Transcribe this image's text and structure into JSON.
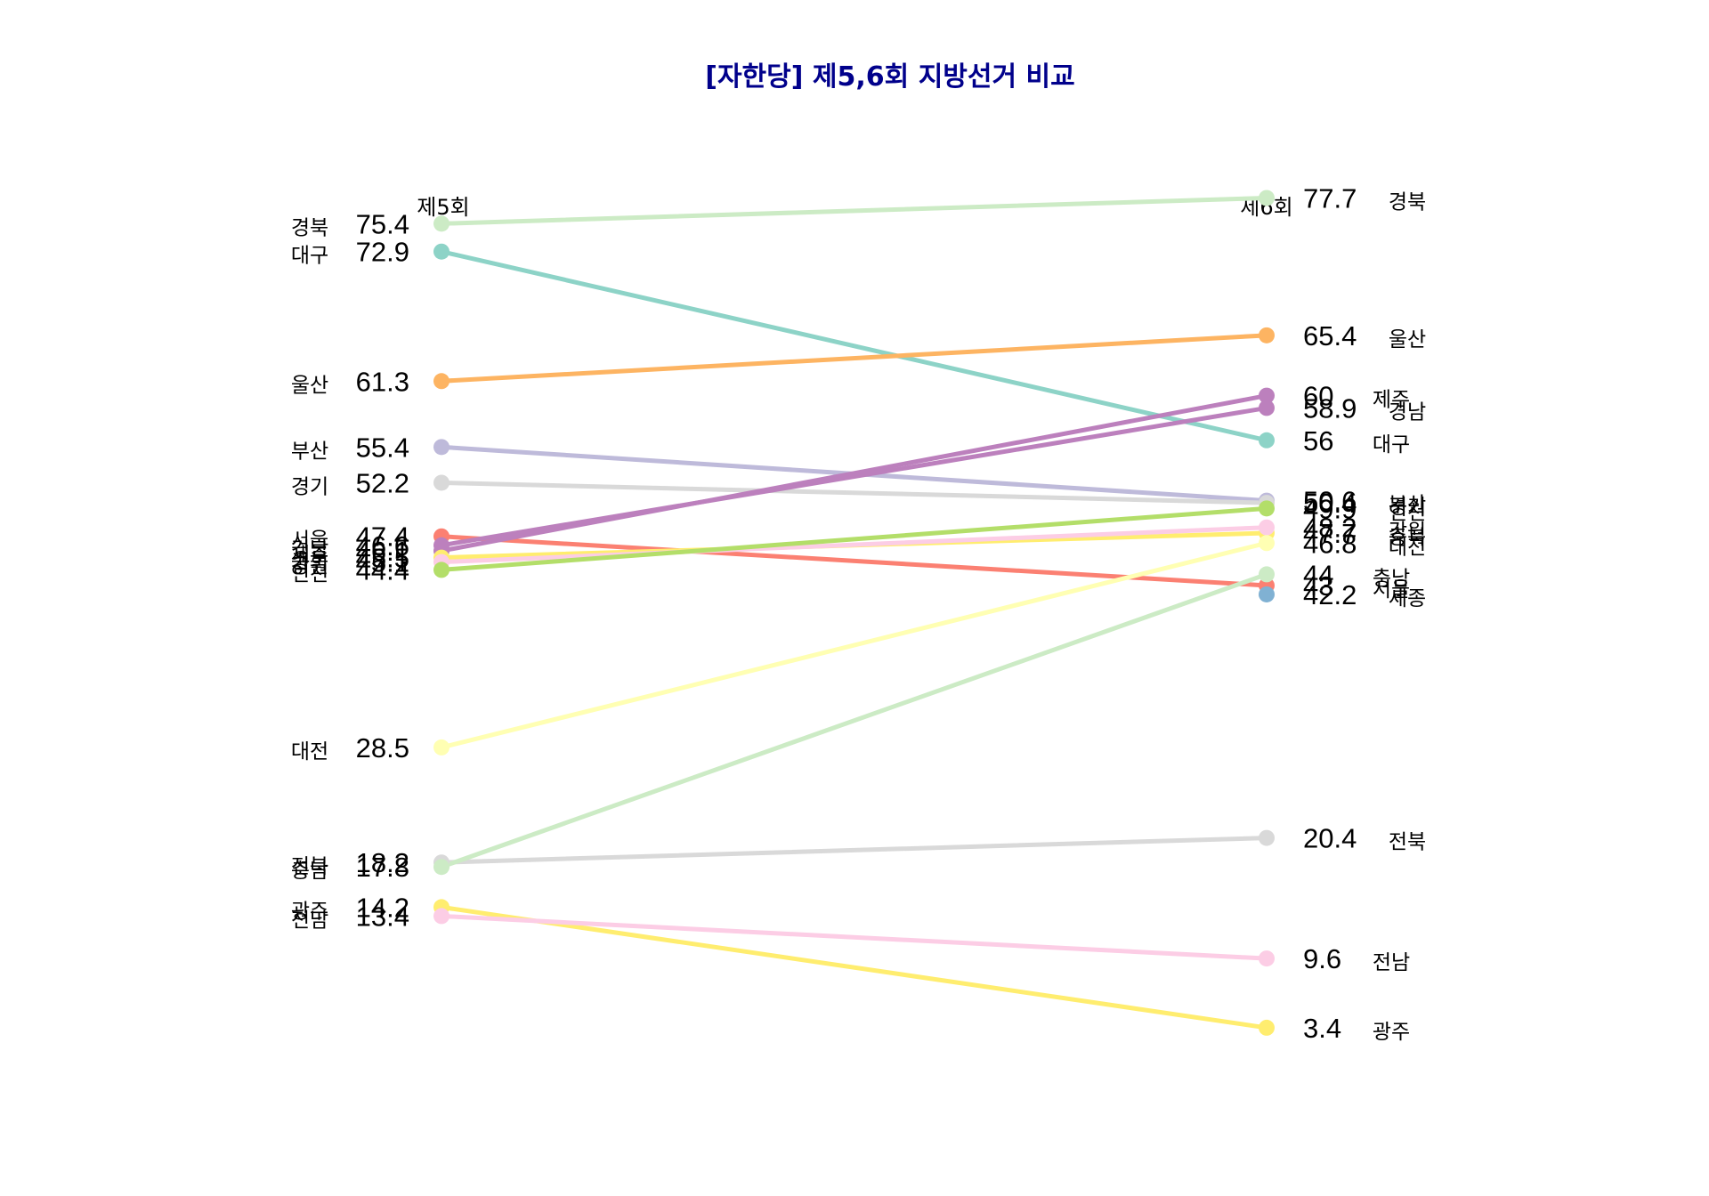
{
  "chart_data": {
    "type": "slope",
    "title": "[자한당] 제5,6회 지방선거 비교",
    "columns": [
      "제5회",
      "제6회"
    ],
    "ylim": [
      0,
      100
    ],
    "series": [
      {
        "name": "경북",
        "values": [
          75.4,
          77.7
        ],
        "color": "#CCEBC5"
      },
      {
        "name": "대구",
        "values": [
          72.9,
          56
        ],
        "color": "#8DD3C7"
      },
      {
        "name": "울산",
        "values": [
          61.3,
          65.4
        ],
        "color": "#FDB462"
      },
      {
        "name": "부산",
        "values": [
          55.4,
          50.6
        ],
        "color": "#BEBADA"
      },
      {
        "name": "경기",
        "values": [
          52.2,
          50.4
        ],
        "color": "#D9D9D9"
      },
      {
        "name": "서울",
        "values": [
          47.4,
          43
        ],
        "color": "#FB8072"
      },
      {
        "name": "경남",
        "values": [
          46.6,
          58.9
        ],
        "color": "#BC80BD"
      },
      {
        "name": "제주",
        "values": [
          46.1,
          60
        ],
        "color": "#BC80BD"
      },
      {
        "name": "충북",
        "values": [
          45.5,
          47.7
        ],
        "color": "#FFED6F"
      },
      {
        "name": "강원",
        "values": [
          45.1,
          48.2
        ],
        "color": "#FCCDE5"
      },
      {
        "name": "인천",
        "values": [
          44.4,
          49.9
        ],
        "color": "#B3DE69"
      },
      {
        "name": "대전",
        "values": [
          28.5,
          46.8
        ],
        "color": "#FFFFB3"
      },
      {
        "name": "전북",
        "values": [
          18.2,
          20.4
        ],
        "color": "#D9D9D9"
      },
      {
        "name": "충남",
        "values": [
          17.8,
          44
        ],
        "color": "#CCEBC5"
      },
      {
        "name": "광주",
        "values": [
          14.2,
          3.4
        ],
        "color": "#FFED6F"
      },
      {
        "name": "전남",
        "values": [
          13.4,
          9.6
        ],
        "color": "#FCCDE5"
      },
      {
        "name": "세종",
        "values": [
          null,
          42.2
        ],
        "color": "#80B1D3"
      }
    ]
  }
}
